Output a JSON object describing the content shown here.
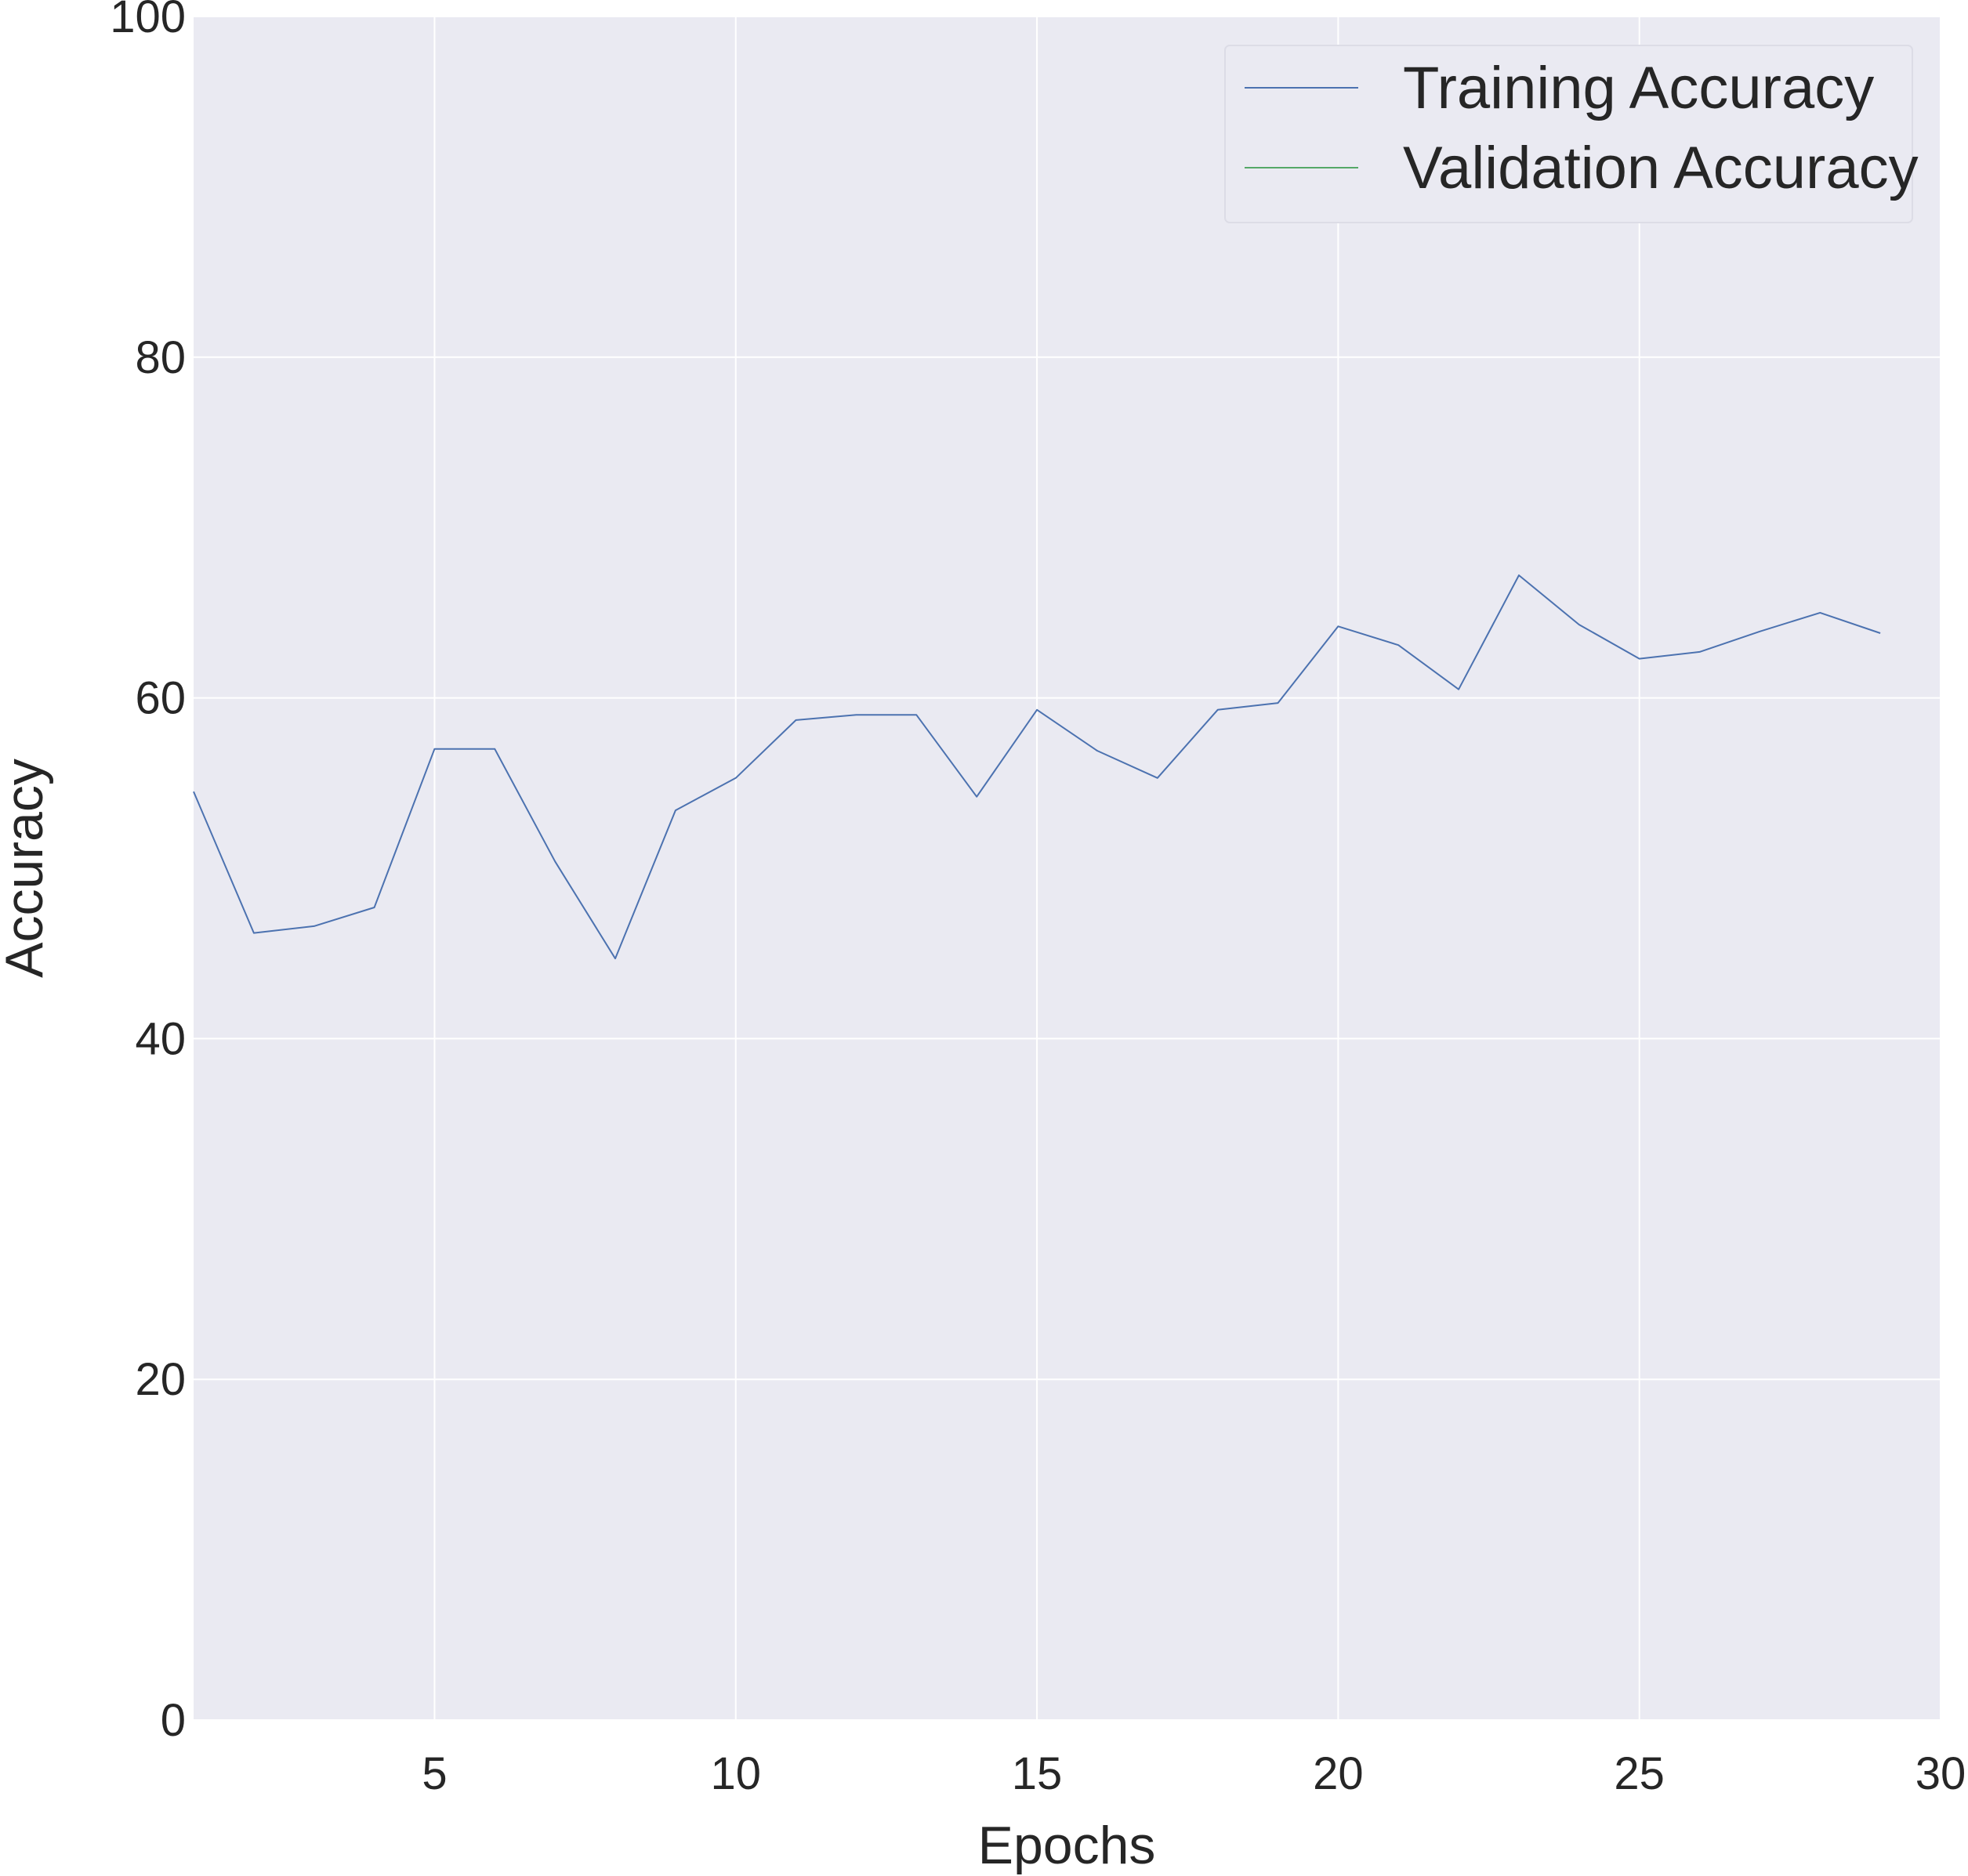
{
  "chart_data": {
    "type": "line",
    "xlabel": "Epochs",
    "ylabel": "Accuracy",
    "xlim": [
      1,
      30
    ],
    "ylim": [
      0,
      100
    ],
    "xticks": [
      5,
      10,
      15,
      20,
      25,
      30
    ],
    "yticks": [
      0,
      20,
      40,
      60,
      80,
      100
    ],
    "grid": true,
    "legend_position": "top-right",
    "colors": {
      "plot_background": "#eaeaf2",
      "grid": "#ffffff",
      "training": "#4c72b0",
      "validation": "#55a868"
    },
    "series": [
      {
        "name": "Training Accuracy",
        "x": [
          1,
          2,
          3,
          4,
          5,
          6,
          7,
          8,
          9,
          10,
          11,
          12,
          13,
          14,
          15,
          16,
          17,
          18,
          19,
          20,
          21,
          22,
          23,
          24,
          25,
          26,
          27,
          28,
          29
        ],
        "values": [
          54.5,
          46.2,
          46.6,
          47.7,
          57.0,
          57.0,
          50.4,
          44.7,
          53.4,
          55.3,
          58.7,
          59.0,
          59.0,
          54.2,
          59.3,
          56.9,
          55.3,
          59.3,
          59.7,
          64.2,
          63.1,
          60.5,
          67.2,
          64.3,
          62.3,
          62.7,
          63.9,
          65.0,
          63.8
        ]
      },
      {
        "name": "Validation Accuracy",
        "x": [],
        "values": []
      }
    ]
  }
}
